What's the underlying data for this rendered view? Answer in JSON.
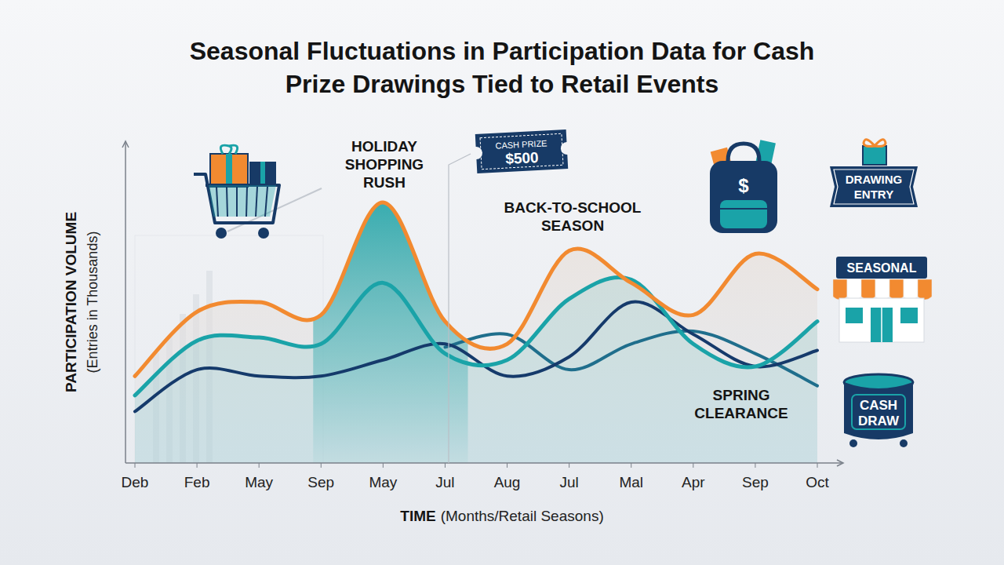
{
  "chart_data": {
    "type": "line",
    "title": "Seasonal Fluctuations in Participation Data for Cash Prize Drawings Tied to Retail Events",
    "y_label": "PARTICIPATION VOLUME",
    "y_label_sub": "(Entries in Thousands)",
    "x_label": "TIME",
    "x_label_sub": "(Months/Retail Seasons)",
    "categories": [
      "Deb",
      "Feb",
      "May",
      "Sep",
      "May",
      "Jul",
      "Aug",
      "Jul",
      "Mal",
      "Apr",
      "Sep",
      "Oct"
    ],
    "series": [
      {
        "color": "#f28a30",
        "values": [
          27,
          47,
          50,
          46,
          81,
          44,
          37,
          66,
          56,
          46,
          65,
          54
        ]
      },
      {
        "color": "#1aa3a8",
        "values": [
          21,
          38,
          39,
          37,
          56,
          34,
          32,
          51,
          57,
          37,
          30,
          44
        ]
      },
      {
        "color": "#153a6b",
        "values": [
          16,
          29,
          27,
          27,
          32,
          37,
          27,
          33,
          50,
          40,
          30,
          35
        ]
      },
      {
        "color": "#1f6e8c",
        "values": [
          null,
          null,
          null,
          null,
          null,
          36,
          40,
          29,
          37,
          41,
          34,
          24
        ]
      }
    ],
    "ylim": [
      0,
      100
    ],
    "tick_labels": "x",
    "grid": false,
    "annotations": [
      "HOLIDAY SHOPPING RUSH",
      "BACK-TO-SCHOOL SEASON",
      "SPRING CLEARANCE"
    ],
    "icon_labels": {
      "ticket_title": "CASH PRIZE",
      "ticket_amount": "$500",
      "backpack": "$",
      "drawing_entry": "DRAWING ENTRY",
      "store_sign": "SEASONAL",
      "drum": "CASH DRAW"
    }
  }
}
